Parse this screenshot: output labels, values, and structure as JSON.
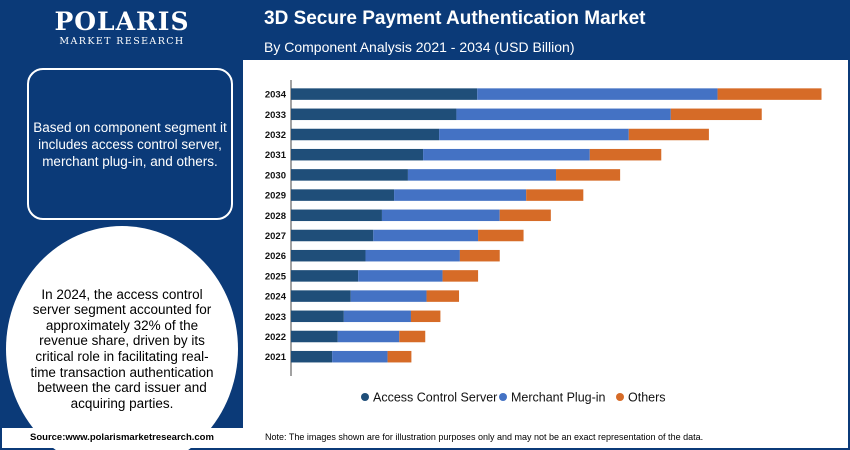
{
  "brand": {
    "name": "POLARIS",
    "tagline": "MARKET RESEARCH"
  },
  "header": {
    "title": "3D Secure Payment Authentication Market",
    "subtitle": "By Component Analysis 2021 - 2034 (USD Billion)"
  },
  "panel": {
    "box_text": "Based on component segment it includes access control server, merchant plug-in, and others.",
    "circle_text": "In 2024, the access control server segment accounted for approximately 32% of the revenue share, driven by its critical role in facilitating real-time transaction authentication between the card issuer and acquiring parties."
  },
  "footer": {
    "source": "Source:www.polarismarketresearch.com",
    "note": "Note: The images shown are for illustration purposes only and may not be an exact representation of the data."
  },
  "colors": {
    "navy": "#0b3a78",
    "access": "#1f4e79",
    "merchant": "#4472c4",
    "others": "#d66b27"
  },
  "chart_data": {
    "type": "bar",
    "orientation": "horizontal",
    "stacked": true,
    "categories": [
      "2021",
      "2022",
      "2023",
      "2024",
      "2025",
      "2026",
      "2027",
      "2028",
      "2029",
      "2030",
      "2031",
      "2032",
      "2033",
      "2034"
    ],
    "series": [
      {
        "name": "Access Control Server",
        "color": "#1f4e79",
        "values": [
          0.95,
          1.08,
          1.22,
          1.38,
          1.55,
          1.72,
          1.9,
          2.1,
          2.38,
          2.7,
          3.05,
          3.42,
          3.82,
          4.3
        ]
      },
      {
        "name": "Merchant Plug-in",
        "color": "#4472c4",
        "values": [
          1.28,
          1.42,
          1.55,
          1.75,
          1.95,
          2.18,
          2.42,
          2.72,
          3.05,
          3.42,
          3.85,
          4.38,
          4.95,
          5.55
        ]
      },
      {
        "name": "Others",
        "color": "#d66b27",
        "values": [
          0.55,
          0.6,
          0.68,
          0.75,
          0.82,
          0.92,
          1.05,
          1.18,
          1.32,
          1.48,
          1.65,
          1.85,
          2.1,
          2.4
        ]
      }
    ],
    "xlim": [
      0,
      12.4
    ],
    "grid": false,
    "legend": "bottom"
  }
}
